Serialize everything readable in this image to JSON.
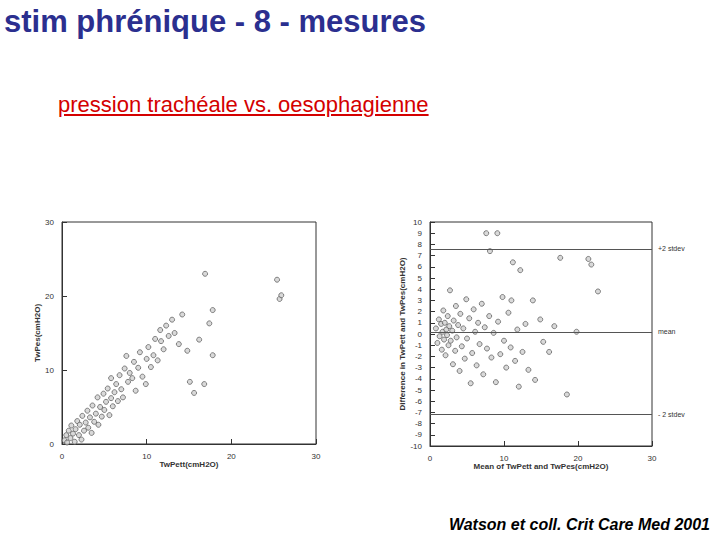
{
  "title": "stim phrénique - 8 - mesures",
  "subtitle": "pression trachéale vs. oesophagienne",
  "source": "Watson et coll. Crit Care Med 2001",
  "chart_data": [
    {
      "type": "scatter",
      "x_label": "TwPett(cmH2O)",
      "y_label": "TwPes(cmH2O)",
      "xlim": [
        0,
        30
      ],
      "xticks": [
        0,
        10,
        20,
        30
      ],
      "ylim": [
        0,
        30
      ],
      "yticks": [
        0,
        10,
        20,
        30
      ],
      "grid": false,
      "series": [
        {
          "color": "#555555",
          "marker": "circle",
          "x": [
            0.3,
            0.5,
            0.6,
            0.8,
            1,
            1.1,
            1.3,
            1.5,
            1.6,
            1.8,
            2,
            2.1,
            2.3,
            2.4,
            2.6,
            2.8,
            3,
            3.1,
            3.3,
            3.5,
            3.6,
            3.8,
            4,
            4.2,
            4.3,
            4.5,
            4.7,
            4.9,
            5,
            5.2,
            5.4,
            5.6,
            5.8,
            5.8,
            6,
            6.2,
            6.4,
            6.6,
            6.8,
            7,
            7.2,
            7.4,
            7.6,
            7.8,
            8,
            8.3,
            8.5,
            8.7,
            9,
            9.2,
            9.5,
            9.9,
            10,
            10.2,
            10.5,
            10.8,
            11,
            11.3,
            11.6,
            11.7,
            12,
            12.3,
            12.6,
            13,
            13.3,
            13.8,
            14.2,
            14.8,
            15.1,
            15.6,
            16.2,
            16.8,
            16.9,
            17.4,
            17.8,
            17.8,
            25.4,
            25.7,
            25.9
          ],
          "values": [
            0.5,
            1.2,
            0.2,
            1.8,
            0.8,
            2.5,
            1.4,
            0.3,
            2,
            3.1,
            1.2,
            2.6,
            0.6,
            3.8,
            1.8,
            2.9,
            4.5,
            2.2,
            3.6,
            1.5,
            5.2,
            3,
            4.1,
            6.3,
            2.6,
            5,
            3.7,
            6.8,
            4.6,
            5.7,
            7.5,
            3.9,
            6.2,
            8.9,
            5.1,
            7,
            8.1,
            5.8,
            9.3,
            7.4,
            6.3,
            10.2,
            11.9,
            8.4,
            9.6,
            8.9,
            11.1,
            7.2,
            10.3,
            12.4,
            9.1,
            8.1,
            11.5,
            13.1,
            10.4,
            12,
            14.2,
            11.3,
            15.4,
            13.9,
            12.8,
            16,
            14.6,
            16.8,
            15,
            13.5,
            17.5,
            12.6,
            8.4,
            6.9,
            14.1,
            8.1,
            23,
            16.3,
            12,
            18.1,
            22.2,
            19.6,
            20.1
          ]
        }
      ]
    },
    {
      "type": "scatter",
      "x_label": "Mean of TwPett and TwPes(cmH2O)",
      "y_label": "Difference in TwPett and TwPes(cmH2O)",
      "xlim": [
        0,
        30
      ],
      "xticks": [
        0,
        10,
        20,
        30
      ],
      "ylim": [
        -10,
        10
      ],
      "yticks": [
        -10,
        -9,
        -8,
        -7,
        -6,
        -5,
        -4,
        -3,
        -2,
        -1,
        0,
        1,
        2,
        3,
        4,
        5,
        6,
        7,
        8,
        9,
        10
      ],
      "grid": false,
      "reference_lines": [
        {
          "value": 7.6,
          "label": "+2 stdev"
        },
        {
          "value": 0.2,
          "label": "mean"
        },
        {
          "value": -7.2,
          "label": "- 2 stdev"
        }
      ],
      "series": [
        {
          "color": "#555555",
          "marker": "circle",
          "x": [
            0.8,
            1,
            1.2,
            1.3,
            1.5,
            1.6,
            1.7,
            1.8,
            1.9,
            2,
            2.1,
            2.2,
            2.3,
            2.4,
            2.5,
            2.6,
            2.7,
            2.8,
            3,
            3.1,
            3.2,
            3.4,
            3.5,
            3.6,
            3.8,
            4,
            4.1,
            4.3,
            4.5,
            4.7,
            4.9,
            5,
            5.3,
            5.5,
            5.7,
            5.9,
            6.1,
            6.3,
            6.5,
            6.7,
            7,
            7.2,
            7.4,
            7.6,
            7.7,
            8,
            8.1,
            8.3,
            8.6,
            8.9,
            9.1,
            9.2,
            9.5,
            9.8,
            10,
            10.3,
            10.6,
            10.9,
            11,
            11.2,
            11.5,
            11.8,
            12,
            12.2,
            12.5,
            12.9,
            13.3,
            13.9,
            14.2,
            14.9,
            15.3,
            16.1,
            16.8,
            17.6,
            18.5,
            19.8,
            21.4,
            21.8,
            22.7
          ],
          "values": [
            0.5,
            -0.8,
            1.3,
            -0.2,
            0.9,
            -1.4,
            0.2,
            2.1,
            -0.5,
            1,
            -1.9,
            0.4,
            -0.1,
            1.6,
            -1,
            0.7,
            3.9,
            -0.6,
            0.3,
            -2.7,
            1.2,
            -1.5,
            2.5,
            -0.3,
            0.8,
            -3.3,
            1.8,
            -1.1,
            0.5,
            -2.2,
            3.1,
            -0.4,
            1.4,
            -4.4,
            -1.7,
            2.2,
            0.2,
            -2.8,
            1,
            -0.9,
            2.7,
            -3.6,
            0.6,
            9,
            -1.3,
            1.6,
            7.4,
            -2.1,
            0.1,
            -4.3,
            9,
            1.1,
            -1.8,
            3.3,
            -0.6,
            -3,
            1.9,
            -1.2,
            3,
            6.4,
            -2.4,
            0.4,
            -4.7,
            5.7,
            -1.6,
            0.9,
            -3.2,
            3,
            -4.1,
            1.3,
            -0.7,
            -1.6,
            0.7,
            6.8,
            -5.4,
            0.2,
            6.7,
            6.2,
            3.8
          ]
        }
      ]
    }
  ]
}
